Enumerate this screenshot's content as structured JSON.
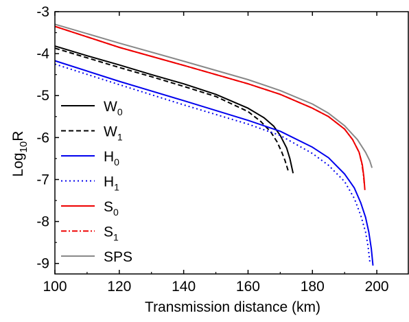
{
  "chart_data": {
    "type": "line",
    "xlabel": "Transmission distance (km)",
    "ylabel_main": "Log",
    "ylabel_sub": "10",
    "ylabel_tail": "R",
    "xlim": [
      100,
      210
    ],
    "ylim": [
      -9.25,
      -3
    ],
    "xticks": [
      100,
      120,
      140,
      160,
      180,
      200
    ],
    "xtick_labels": [
      "100",
      "120",
      "140",
      "160",
      "180",
      "200"
    ],
    "yticks": [
      -3,
      -4,
      -5,
      -6,
      -7,
      -8,
      -9
    ],
    "ytick_labels": [
      "-3",
      "-4",
      "-5",
      "-6",
      "-7",
      "-8",
      "-9"
    ],
    "grid": false,
    "legend_position": "left",
    "series": [
      {
        "label_main": "W",
        "label_sub": "0",
        "color": "#000000",
        "dash": "solid",
        "x": [
          100,
          110,
          120,
          130,
          140,
          150,
          160,
          165,
          168,
          170,
          172,
          173,
          174
        ],
        "y": [
          -3.82,
          -4.05,
          -4.27,
          -4.5,
          -4.72,
          -4.97,
          -5.3,
          -5.53,
          -5.73,
          -5.95,
          -6.25,
          -6.5,
          -6.85
        ]
      },
      {
        "label_main": "W",
        "label_sub": "1",
        "color": "#000000",
        "dash": "dashed",
        "x": [
          100,
          110,
          120,
          130,
          140,
          150,
          160,
          164,
          167,
          169,
          170.5,
          171.5,
          172.5
        ],
        "y": [
          -3.87,
          -4.1,
          -4.33,
          -4.55,
          -4.78,
          -5.02,
          -5.38,
          -5.62,
          -5.86,
          -6.1,
          -6.35,
          -6.55,
          -6.8
        ]
      },
      {
        "label_main": "H",
        "label_sub": "0",
        "color": "#0000ee",
        "dash": "solid",
        "x": [
          100,
          120,
          140,
          160,
          170,
          180,
          185,
          190,
          193,
          195,
          196.5,
          197.5,
          198.3,
          198.8
        ],
        "y": [
          -4.17,
          -4.66,
          -5.12,
          -5.59,
          -5.85,
          -6.23,
          -6.48,
          -6.87,
          -7.2,
          -7.55,
          -7.9,
          -8.25,
          -8.65,
          -9.05
        ]
      },
      {
        "label_main": "H",
        "label_sub": "1",
        "color": "#0000ee",
        "dash": "dotted",
        "x": [
          100,
          120,
          140,
          160,
          170,
          180,
          185,
          190,
          193,
          195,
          196.5,
          197.3,
          197.9
        ],
        "y": [
          -4.25,
          -4.74,
          -5.22,
          -5.68,
          -5.95,
          -6.38,
          -6.66,
          -7.05,
          -7.45,
          -7.85,
          -8.25,
          -8.6,
          -9.0
        ]
      },
      {
        "label_main": "S",
        "label_sub": "0",
        "color": "#ee0000",
        "dash": "solid",
        "x": [
          100,
          120,
          140,
          160,
          170,
          180,
          185,
          190,
          192.5,
          194.5,
          195.5,
          196,
          196.3
        ],
        "y": [
          -3.35,
          -3.85,
          -4.28,
          -4.72,
          -4.97,
          -5.3,
          -5.5,
          -5.8,
          -6.05,
          -6.35,
          -6.65,
          -6.95,
          -7.25
        ]
      },
      {
        "label_main": "S",
        "label_sub": "1",
        "color": "#ee0000",
        "dash": "dashdot",
        "x": [
          100,
          120,
          140,
          160,
          170,
          180,
          185,
          190,
          192.5,
          194.5,
          195.3,
          195.8,
          196.1
        ],
        "y": [
          -3.35,
          -3.85,
          -4.28,
          -4.72,
          -4.97,
          -5.3,
          -5.5,
          -5.8,
          -6.05,
          -6.35,
          -6.6,
          -6.85,
          -7.1
        ]
      },
      {
        "label_main": "SPS",
        "label_sub": "",
        "color": "#888888",
        "dash": "solid",
        "x": [
          100,
          120,
          140,
          160,
          170,
          180,
          185,
          190,
          194,
          196.5,
          197.8,
          198.5
        ],
        "y": [
          -3.3,
          -3.75,
          -4.18,
          -4.62,
          -4.88,
          -5.2,
          -5.42,
          -5.72,
          -6.05,
          -6.35,
          -6.55,
          -6.72
        ]
      }
    ]
  }
}
